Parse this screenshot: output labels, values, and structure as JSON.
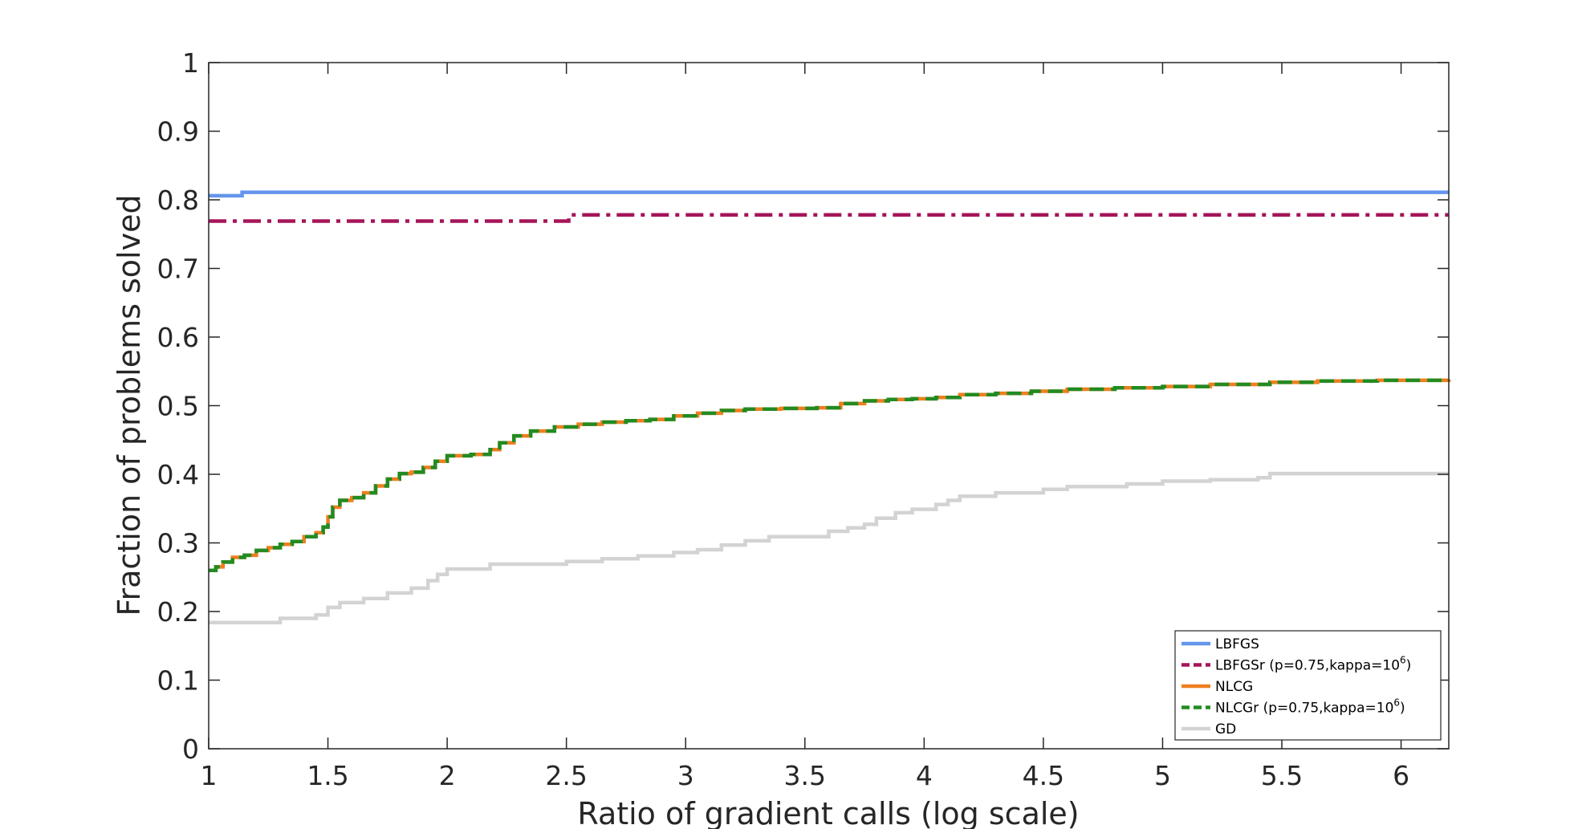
{
  "chart_data": {
    "type": "line",
    "xlabel": "Ratio of gradient calls (log scale)",
    "ylabel": "Fraction of problems solved",
    "xlim": [
      1,
      6.2
    ],
    "ylim": [
      0,
      1
    ],
    "x_ticks": [
      "1",
      "1.5",
      "2",
      "2.5",
      "3",
      "3.5",
      "4",
      "4.5",
      "5",
      "5.5",
      "6"
    ],
    "y_ticks": [
      "0",
      "0.1",
      "0.2",
      "0.3",
      "0.4",
      "0.5",
      "0.6",
      "0.7",
      "0.8",
      "0.9",
      "1"
    ],
    "grid": false,
    "legend_position": "bottom-right",
    "series": [
      {
        "name": "LBFGS",
        "color": "#6495ED",
        "style": "solid",
        "x": [
          1,
          1.14,
          1.14,
          6.2
        ],
        "y": [
          0.806,
          0.806,
          0.811,
          0.811
        ]
      },
      {
        "name": "LBFGSr (p=0.75,kappa=10",
        "name_sup": "6",
        "name_suffix": ")",
        "color": "#A5155A",
        "style": "dashdot",
        "x": [
          1,
          2.51,
          2.51,
          6.2
        ],
        "y": [
          0.769,
          0.769,
          0.778,
          0.778
        ]
      },
      {
        "name": "NLCG",
        "color": "#EE7F1E",
        "style": "solid",
        "x": [
          1,
          1.03,
          1.06,
          1.1,
          1.15,
          1.2,
          1.25,
          1.3,
          1.35,
          1.4,
          1.45,
          1.48,
          1.5,
          1.52,
          1.55,
          1.6,
          1.65,
          1.7,
          1.75,
          1.8,
          1.85,
          1.9,
          1.95,
          2.0,
          2.1,
          2.18,
          2.22,
          2.28,
          2.35,
          2.45,
          2.55,
          2.65,
          2.75,
          2.85,
          2.95,
          3.05,
          3.15,
          3.25,
          3.4,
          3.55,
          3.65,
          3.75,
          3.85,
          3.95,
          4.05,
          4.15,
          4.3,
          4.45,
          4.6,
          4.8,
          5.0,
          5.2,
          5.45,
          5.65,
          5.9,
          6.2
        ],
        "y": [
          0.26,
          0.265,
          0.272,
          0.279,
          0.282,
          0.289,
          0.293,
          0.298,
          0.302,
          0.309,
          0.315,
          0.323,
          0.338,
          0.352,
          0.362,
          0.366,
          0.373,
          0.383,
          0.393,
          0.401,
          0.403,
          0.41,
          0.419,
          0.427,
          0.429,
          0.436,
          0.446,
          0.456,
          0.463,
          0.469,
          0.473,
          0.476,
          0.478,
          0.48,
          0.485,
          0.489,
          0.493,
          0.495,
          0.496,
          0.497,
          0.503,
          0.507,
          0.509,
          0.51,
          0.512,
          0.516,
          0.518,
          0.521,
          0.524,
          0.526,
          0.528,
          0.531,
          0.534,
          0.536,
          0.537,
          0.538
        ]
      },
      {
        "name": "NLCGr (p=0.75,kappa=10",
        "name_sup": "6",
        "name_suffix": ")",
        "color": "#228B22",
        "style": "dashed",
        "x": [
          1,
          1.03,
          1.06,
          1.1,
          1.15,
          1.2,
          1.25,
          1.3,
          1.35,
          1.4,
          1.45,
          1.48,
          1.5,
          1.52,
          1.55,
          1.6,
          1.65,
          1.7,
          1.75,
          1.8,
          1.85,
          1.9,
          1.95,
          2.0,
          2.1,
          2.18,
          2.22,
          2.28,
          2.35,
          2.45,
          2.55,
          2.65,
          2.75,
          2.85,
          2.95,
          3.05,
          3.15,
          3.25,
          3.4,
          3.55,
          3.65,
          3.75,
          3.85,
          3.95,
          4.05,
          4.15,
          4.3,
          4.45,
          4.6,
          4.8,
          5.0,
          5.2,
          5.45,
          5.65,
          5.9,
          6.2
        ],
        "y": [
          0.26,
          0.265,
          0.272,
          0.279,
          0.282,
          0.289,
          0.293,
          0.298,
          0.302,
          0.309,
          0.315,
          0.323,
          0.338,
          0.352,
          0.362,
          0.366,
          0.373,
          0.383,
          0.393,
          0.401,
          0.403,
          0.41,
          0.419,
          0.427,
          0.429,
          0.436,
          0.446,
          0.456,
          0.463,
          0.469,
          0.473,
          0.476,
          0.478,
          0.48,
          0.485,
          0.489,
          0.493,
          0.495,
          0.496,
          0.497,
          0.503,
          0.507,
          0.509,
          0.51,
          0.512,
          0.516,
          0.518,
          0.521,
          0.524,
          0.526,
          0.528,
          0.531,
          0.534,
          0.536,
          0.537,
          0.538
        ]
      },
      {
        "name": "GD",
        "color": "#D3D3D3",
        "style": "solid",
        "x": [
          1,
          1.25,
          1.3,
          1.45,
          1.5,
          1.55,
          1.65,
          1.75,
          1.85,
          1.92,
          1.96,
          2.0,
          2.18,
          2.5,
          2.65,
          2.8,
          2.95,
          3.05,
          3.15,
          3.25,
          3.35,
          3.6,
          3.68,
          3.75,
          3.8,
          3.88,
          3.95,
          4.05,
          4.1,
          4.15,
          4.3,
          4.5,
          4.6,
          4.85,
          5.0,
          5.2,
          5.4,
          5.45,
          6.2
        ],
        "y": [
          0.184,
          0.184,
          0.19,
          0.195,
          0.206,
          0.213,
          0.219,
          0.227,
          0.234,
          0.245,
          0.254,
          0.262,
          0.269,
          0.273,
          0.277,
          0.281,
          0.286,
          0.29,
          0.297,
          0.303,
          0.309,
          0.317,
          0.322,
          0.327,
          0.336,
          0.344,
          0.349,
          0.356,
          0.362,
          0.368,
          0.373,
          0.378,
          0.382,
          0.386,
          0.39,
          0.392,
          0.395,
          0.401,
          0.401
        ]
      }
    ]
  }
}
